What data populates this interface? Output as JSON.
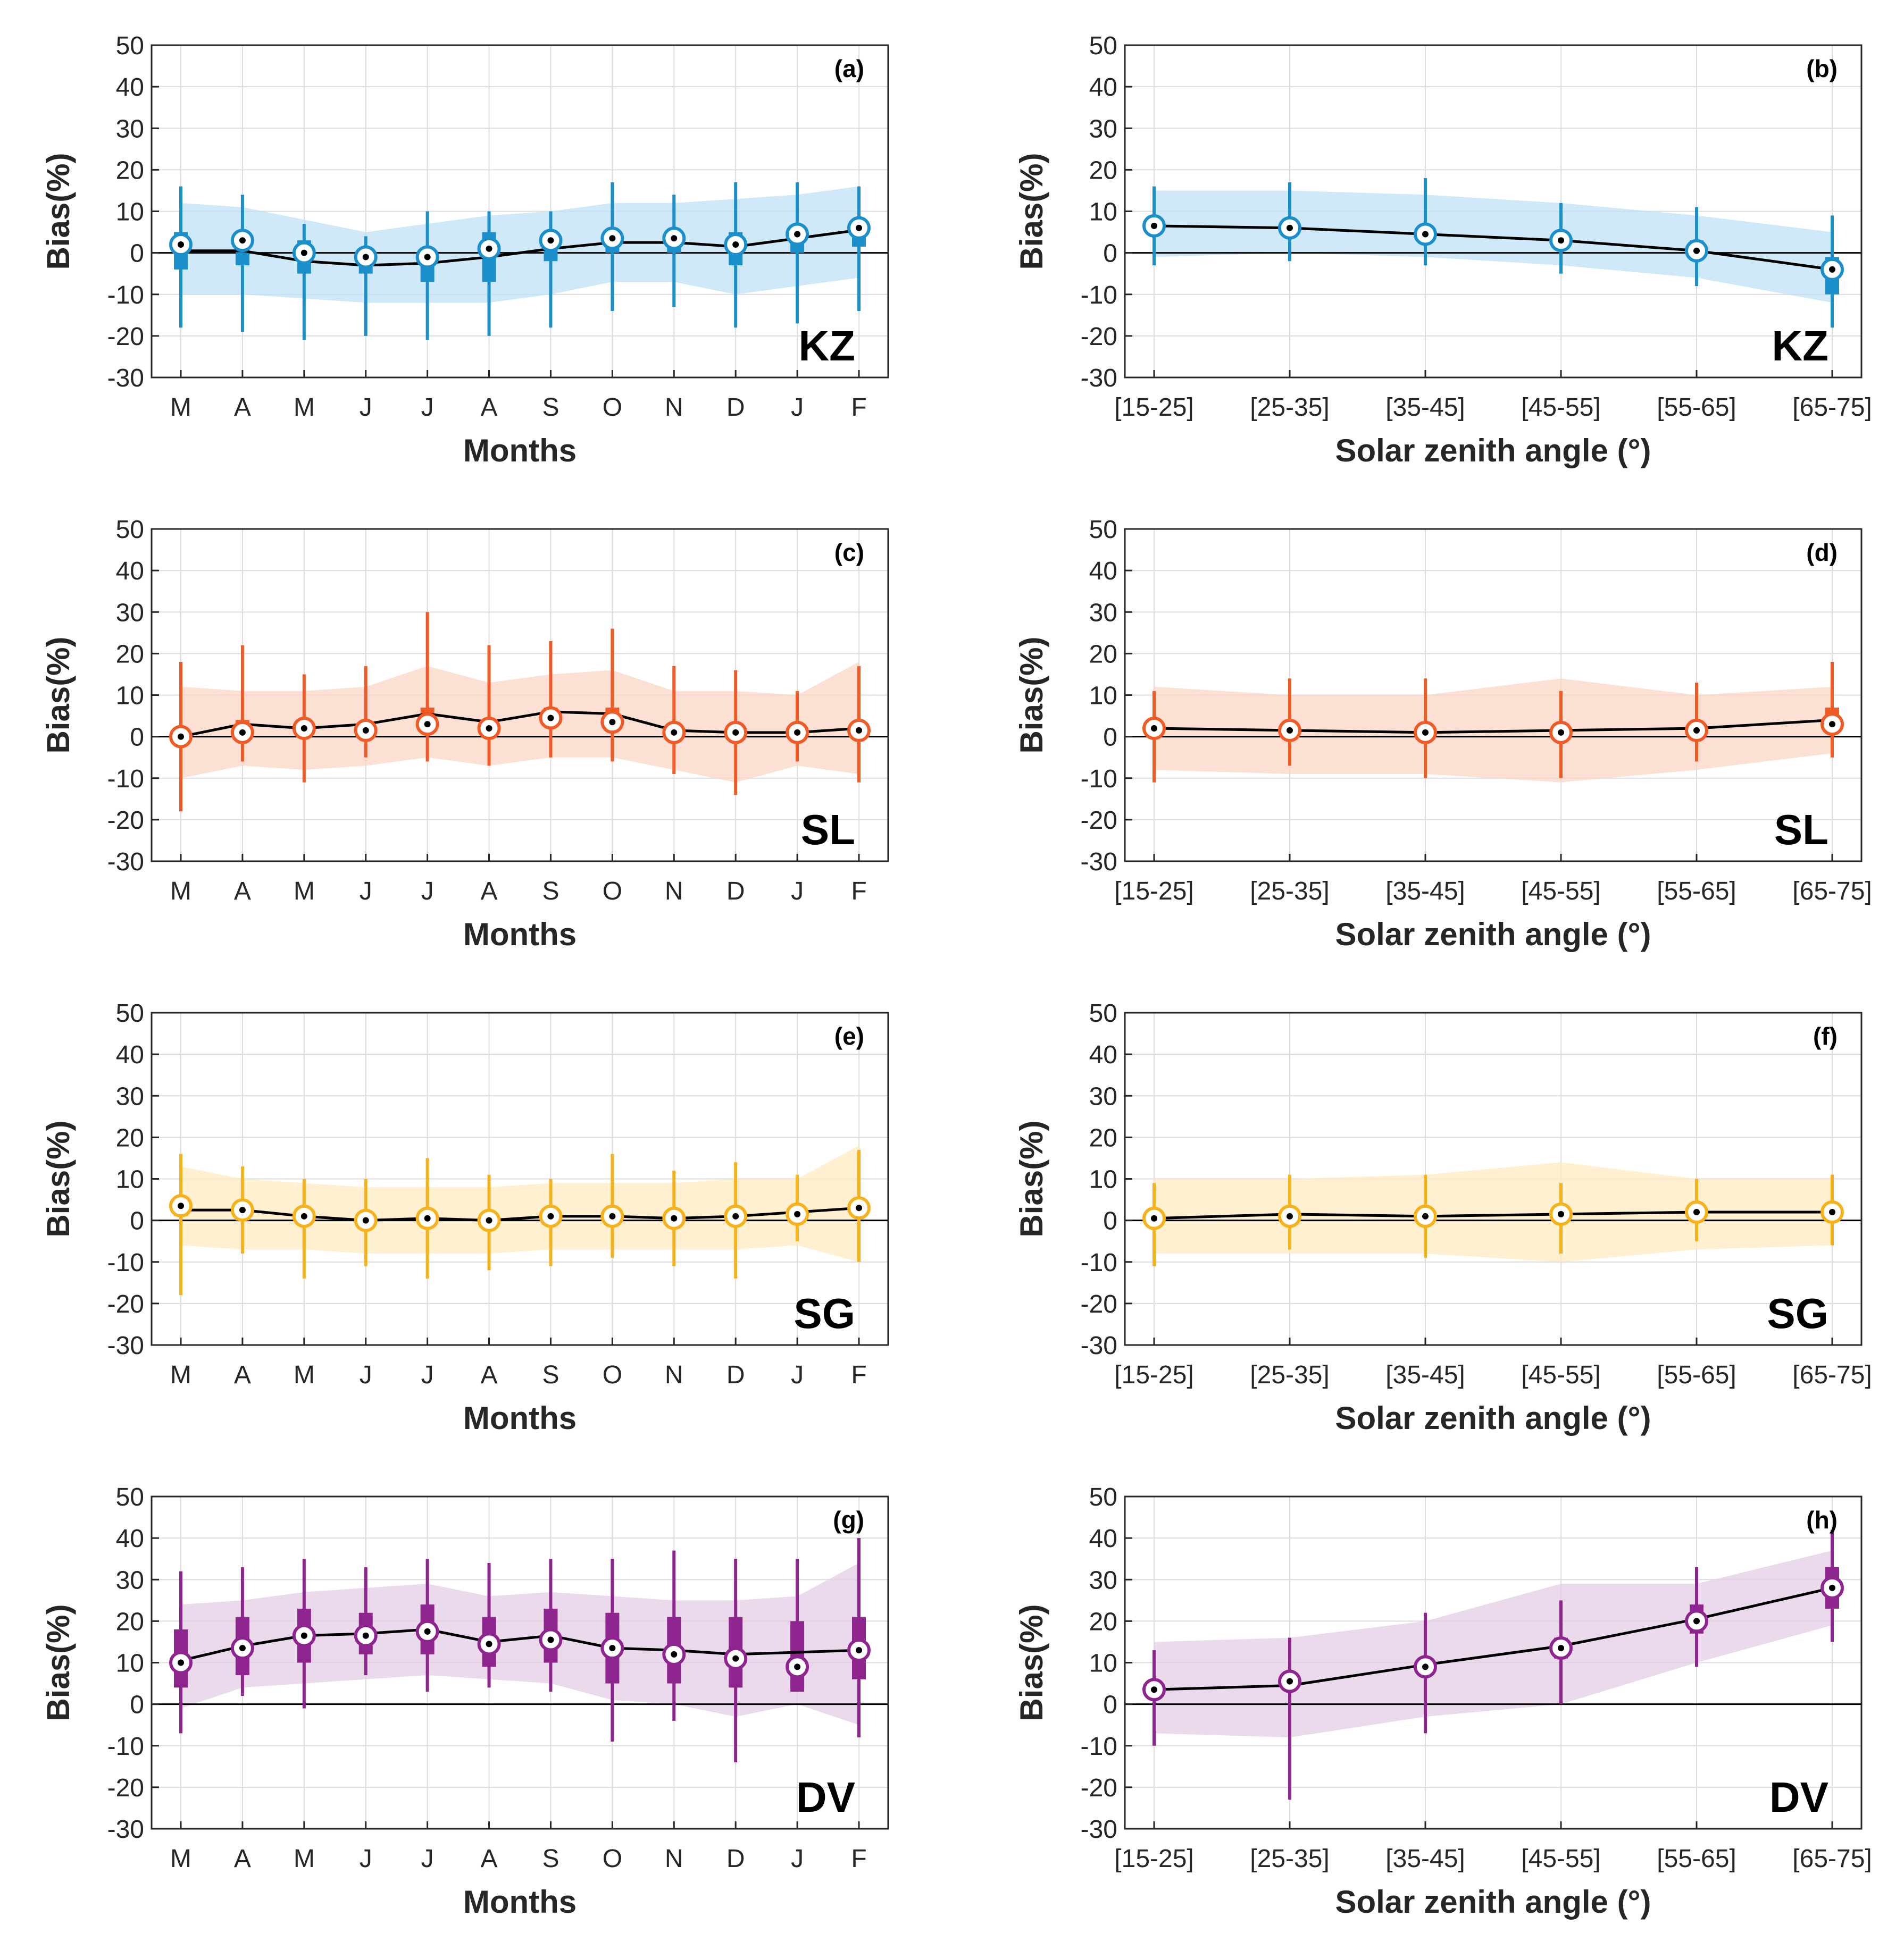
{
  "figure": {
    "ylim": [
      -30,
      50
    ],
    "yticks": [
      50,
      40,
      30,
      20,
      10,
      0,
      -10,
      -20,
      -30
    ]
  },
  "labels": {
    "ylabel": "Bias(%)",
    "months_xlabel": "Months",
    "sza_xlabel": "Solar zenith angle (°)"
  },
  "stations": [
    {
      "code": "KZ",
      "color": "#1a8fca",
      "band": "#bfe2f5"
    },
    {
      "code": "SL",
      "color": "#f05a24",
      "band": "#fcd5c5"
    },
    {
      "code": "SG",
      "color": "#f6b21b",
      "band": "#fdebc2"
    },
    {
      "code": "DV",
      "color": "#8e248d",
      "band": "#e4cde6"
    }
  ],
  "chart_data": [
    {
      "id": "a",
      "tag": "(a)",
      "station": "KZ",
      "type": "box-line",
      "xlabel": "Months",
      "ylabel": "Bias(%)",
      "ylim": [
        -30,
        50
      ],
      "categories": [
        "M",
        "A",
        "M",
        "J",
        "J",
        "A",
        "S",
        "O",
        "N",
        "D",
        "J",
        "F"
      ],
      "mean": [
        0.5,
        0.5,
        -2,
        -3,
        -2.5,
        -1,
        1,
        2.5,
        2.5,
        1.5,
        3.5,
        5.5
      ],
      "median": [
        2,
        3,
        0,
        -1,
        -1,
        1,
        3,
        3.5,
        3.5,
        2,
        4.5,
        6
      ],
      "q1": [
        -4,
        -3,
        -5,
        -5,
        -7,
        -7,
        -2,
        0,
        0,
        -3,
        0,
        1.5
      ],
      "q3": [
        5,
        5,
        3,
        1,
        1,
        5,
        5,
        5,
        5,
        5,
        6,
        8
      ],
      "whisker_low": [
        -18,
        -19,
        -21,
        -20,
        -21,
        -20,
        -18,
        -14,
        -13,
        -18,
        -17,
        -14
      ],
      "whisker_high": [
        16,
        14,
        7,
        4,
        10,
        10,
        10,
        17,
        14,
        17,
        17,
        16
      ],
      "band_low": [
        -10,
        -10,
        -11,
        -12,
        -12,
        -12,
        -10,
        -7,
        -7,
        -10,
        -8,
        -6
      ],
      "band_high": [
        12,
        11,
        8,
        5,
        7,
        9,
        10,
        12,
        12,
        13,
        14,
        16
      ]
    },
    {
      "id": "b",
      "tag": "(b)",
      "station": "KZ",
      "type": "box-line",
      "xlabel": "Solar zenith angle (°)",
      "ylabel": "Bias(%)",
      "ylim": [
        -30,
        50
      ],
      "categories": [
        "[15-25]",
        "[25-35]",
        "[35-45]",
        "[45-55]",
        "[55-65]",
        "[65-75]"
      ],
      "mean": [
        6.5,
        6,
        4.5,
        3,
        0.5,
        -4
      ],
      "median": [
        6.5,
        6,
        4.5,
        3,
        0.5,
        -4
      ],
      "q1": [
        5,
        5,
        3,
        1.5,
        -1,
        -10
      ],
      "q3": [
        8,
        7,
        6,
        4,
        3,
        -1
      ],
      "whisker_low": [
        -3,
        -2,
        -3,
        -5,
        -8,
        -18
      ],
      "whisker_high": [
        16,
        17,
        18,
        12,
        11,
        9
      ],
      "band_low": [
        -1,
        0,
        -1,
        -3,
        -6,
        -12
      ],
      "band_high": [
        15,
        15,
        14,
        12,
        9,
        5
      ]
    },
    {
      "id": "c",
      "tag": "(c)",
      "station": "SL",
      "type": "box-line",
      "xlabel": "Months",
      "ylabel": "Bias(%)",
      "ylim": [
        -30,
        50
      ],
      "categories": [
        "M",
        "A",
        "M",
        "J",
        "J",
        "A",
        "S",
        "O",
        "N",
        "D",
        "J",
        "F"
      ],
      "mean": [
        0,
        3,
        2,
        3,
        5.5,
        3.5,
        6,
        5.5,
        1.5,
        1,
        1,
        2
      ],
      "median": [
        0,
        1,
        2,
        1.5,
        3,
        2,
        4.5,
        3.5,
        1,
        1,
        1,
        1.5
      ],
      "q1": [
        -2,
        0,
        0,
        0,
        2,
        0,
        3,
        2,
        0,
        -1,
        0,
        0
      ],
      "q3": [
        2,
        4,
        3,
        3,
        7,
        4,
        7,
        7,
        2,
        2,
        2,
        3
      ],
      "whisker_low": [
        -18,
        -6,
        -11,
        -5,
        -6,
        -7,
        -5,
        -6,
        -9,
        -14,
        -6,
        -11
      ],
      "whisker_high": [
        18,
        22,
        15,
        17,
        30,
        22,
        23,
        26,
        17,
        16,
        11,
        17
      ],
      "band_low": [
        -10,
        -7,
        -8,
        -7,
        -5,
        -7,
        -5,
        -5,
        -8,
        -11,
        -7,
        -9
      ],
      "band_high": [
        12,
        11,
        11,
        12,
        17,
        13,
        15,
        16,
        11,
        11,
        10,
        18
      ]
    },
    {
      "id": "d",
      "tag": "(d)",
      "station": "SL",
      "type": "box-line",
      "xlabel": "Solar zenith angle (°)",
      "ylabel": "Bias(%)",
      "ylim": [
        -30,
        50
      ],
      "categories": [
        "[15-25]",
        "[25-35]",
        "[35-45]",
        "[45-55]",
        "[55-65]",
        "[65-75]"
      ],
      "mean": [
        2,
        1.5,
        1,
        1.5,
        2,
        4
      ],
      "median": [
        2,
        1.5,
        1,
        1,
        1.5,
        3
      ],
      "q1": [
        1,
        0,
        0,
        0,
        0,
        1
      ],
      "q3": [
        3,
        3,
        2,
        2,
        3,
        7
      ],
      "whisker_low": [
        -11,
        -7,
        -10,
        -10,
        -6,
        -5
      ],
      "whisker_high": [
        11,
        14,
        14,
        11,
        13,
        18
      ],
      "band_low": [
        -8,
        -9,
        -9,
        -11,
        -8,
        -4
      ],
      "band_high": [
        12,
        10,
        10,
        14,
        10,
        12
      ]
    },
    {
      "id": "e",
      "tag": "(e)",
      "station": "SG",
      "type": "box-line",
      "xlabel": "Months",
      "ylabel": "Bias(%)",
      "ylim": [
        -30,
        50
      ],
      "categories": [
        "M",
        "A",
        "M",
        "J",
        "J",
        "A",
        "S",
        "O",
        "N",
        "D",
        "J",
        "F"
      ],
      "mean": [
        2.5,
        2.5,
        1,
        0,
        0.5,
        0,
        1,
        1,
        0.5,
        1,
        2,
        3
      ],
      "median": [
        3.5,
        2.5,
        1,
        0,
        0.5,
        0,
        1,
        1,
        0.5,
        1,
        1.5,
        3
      ],
      "q1": [
        1,
        0,
        -1,
        -2,
        -1,
        -1,
        0,
        0,
        -1,
        -1,
        0,
        1
      ],
      "q3": [
        5,
        4,
        2,
        2,
        2,
        1,
        2,
        2,
        2,
        2,
        3,
        5
      ],
      "whisker_low": [
        -18,
        -8,
        -14,
        -11,
        -14,
        -12,
        -11,
        -9,
        -11,
        -14,
        -5,
        -10
      ],
      "whisker_high": [
        16,
        13,
        10,
        10,
        15,
        11,
        10,
        16,
        12,
        14,
        11,
        17
      ],
      "band_low": [
        -6,
        -7,
        -7,
        -8,
        -8,
        -8,
        -7,
        -7,
        -7,
        -7,
        -6,
        -10
      ],
      "band_high": [
        13,
        10,
        9,
        8,
        8,
        8,
        9,
        9,
        9,
        10,
        10,
        18
      ]
    },
    {
      "id": "f",
      "tag": "(f)",
      "station": "SG",
      "type": "box-line",
      "xlabel": "Solar zenith angle (°)",
      "ylabel": "Bias(%)",
      "ylim": [
        -30,
        50
      ],
      "categories": [
        "[15-25]",
        "[25-35]",
        "[35-45]",
        "[45-55]",
        "[55-65]",
        "[65-75]"
      ],
      "mean": [
        0.5,
        1.5,
        1,
        1.5,
        2,
        2
      ],
      "median": [
        0.5,
        1,
        1,
        1.5,
        2,
        2
      ],
      "q1": [
        -1,
        0,
        0,
        0,
        0,
        0
      ],
      "q3": [
        2,
        2,
        2,
        2,
        3,
        4
      ],
      "whisker_low": [
        -11,
        -7,
        -9,
        -8,
        -5,
        -6
      ],
      "whisker_high": [
        9,
        11,
        11,
        9,
        10,
        11
      ],
      "band_low": [
        -8,
        -8,
        -8,
        -10,
        -7,
        -6
      ],
      "band_high": [
        10,
        10,
        11,
        14,
        10,
        10
      ]
    },
    {
      "id": "g",
      "tag": "(g)",
      "station": "DV",
      "type": "box-line",
      "xlabel": "Months",
      "ylabel": "Bias(%)",
      "ylim": [
        -30,
        50
      ],
      "categories": [
        "M",
        "A",
        "M",
        "J",
        "J",
        "A",
        "S",
        "O",
        "N",
        "D",
        "J",
        "F"
      ],
      "mean": [
        10.5,
        14,
        16.5,
        17,
        18,
        15,
        16.5,
        13.5,
        13,
        12,
        12.5,
        13
      ],
      "median": [
        10,
        13.5,
        16.5,
        16.5,
        17.5,
        14.5,
        15.5,
        13.5,
        12,
        11,
        9,
        13
      ],
      "q1": [
        4,
        7,
        10,
        12,
        12,
        9,
        10,
        5,
        5,
        4,
        3,
        6
      ],
      "q3": [
        18,
        21,
        23,
        22,
        24,
        21,
        23,
        22,
        21,
        21,
        20,
        21
      ],
      "whisker_low": [
        -7,
        2,
        -1,
        7,
        3,
        4,
        3,
        -9,
        -4,
        -14,
        3,
        -8
      ],
      "whisker_high": [
        32,
        33,
        35,
        33,
        35,
        34,
        35,
        35,
        37,
        35,
        35,
        40
      ],
      "band_low": [
        -1,
        4,
        5,
        6,
        7,
        6,
        5,
        1,
        0,
        -3,
        0,
        -5
      ],
      "band_high": [
        24,
        25,
        27,
        28,
        29,
        26,
        27,
        26,
        25,
        25,
        26,
        34
      ]
    },
    {
      "id": "h",
      "tag": "(h)",
      "station": "DV",
      "type": "box-line",
      "xlabel": "Solar zenith angle (°)",
      "ylabel": "Bias(%)",
      "ylim": [
        -30,
        50
      ],
      "categories": [
        "[15-25]",
        "[25-35]",
        "[35-45]",
        "[45-55]",
        "[55-65]",
        "[65-75]"
      ],
      "mean": [
        3.5,
        4.5,
        9.5,
        14,
        20.5,
        28
      ],
      "median": [
        3.5,
        5.5,
        9,
        13.5,
        20,
        28
      ],
      "q1": [
        2,
        4,
        7,
        11,
        17,
        23
      ],
      "q3": [
        5,
        7,
        11,
        16,
        24,
        33
      ],
      "whisker_low": [
        -10,
        -23,
        -7,
        0,
        9,
        15
      ],
      "whisker_high": [
        13,
        16,
        22,
        25,
        33,
        42
      ],
      "band_low": [
        -7,
        -8,
        -3,
        0,
        10,
        19
      ],
      "band_high": [
        15,
        16,
        20,
        29,
        29,
        37
      ]
    }
  ]
}
